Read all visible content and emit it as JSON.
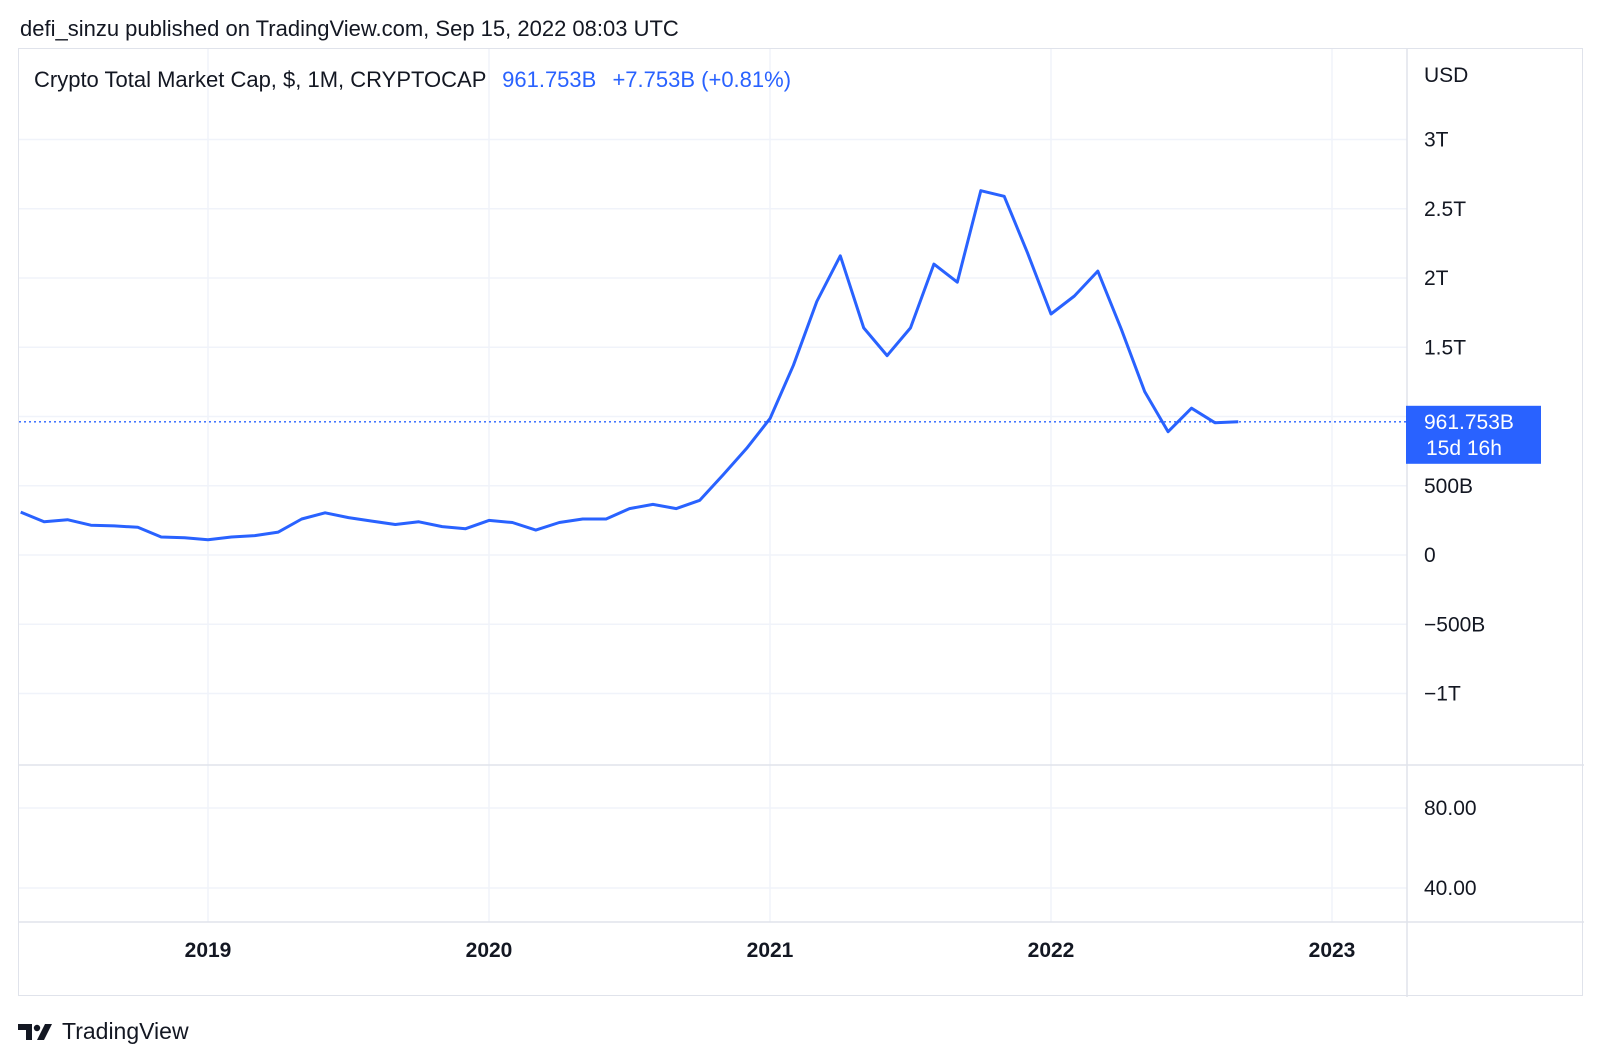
{
  "header": {
    "published": "defi_sinzu published on TradingView.com, Sep 15, 2022 08:03 UTC"
  },
  "legend": {
    "symbol": "Crypto Total Market Cap, $, 1M, CRYPTOCAP",
    "value": "961.753B",
    "change": "+7.753B (+0.81%)"
  },
  "price_tag": {
    "value": "961.753B",
    "countdown": "15d 16h"
  },
  "footer": {
    "brand": "TradingView"
  },
  "colors": {
    "line": "#2962ff",
    "grid": "#f0f3fa",
    "text": "#131722"
  },
  "chart_data": {
    "type": "line",
    "title": "Crypto Total Market Cap, $, 1M, CRYPTOCAP",
    "ylabel": "USD",
    "ylim": [
      -1000000000000,
      3000000000000
    ],
    "y_ticks": [
      {
        "value": 3000000000000,
        "label": "3T"
      },
      {
        "value": 2500000000000,
        "label": "2.5T"
      },
      {
        "value": 2000000000000,
        "label": "2T"
      },
      {
        "value": 1500000000000,
        "label": "1.5T"
      },
      {
        "value": 500000000000,
        "label": "500B"
      },
      {
        "value": 0,
        "label": "0"
      },
      {
        "value": -500000000000,
        "label": "−500B"
      },
      {
        "value": -1000000000000,
        "label": "−1T"
      }
    ],
    "lower_pane_ticks": [
      {
        "value": 80,
        "label": "80.00"
      },
      {
        "value": 40,
        "label": "40.00"
      }
    ],
    "x_ticks": [
      {
        "date": "2019-01",
        "label": "2019"
      },
      {
        "date": "2020-01",
        "label": "2020"
      },
      {
        "date": "2021-01",
        "label": "2021"
      },
      {
        "date": "2022-01",
        "label": "2022"
      },
      {
        "date": "2023-01",
        "label": "2023"
      }
    ],
    "grid": true,
    "series": [
      {
        "x": [
          "2018-05",
          "2018-06",
          "2018-07",
          "2018-08",
          "2018-09",
          "2018-10",
          "2018-11",
          "2018-12",
          "2019-01",
          "2019-02",
          "2019-03",
          "2019-04",
          "2019-05",
          "2019-06",
          "2019-07",
          "2019-08",
          "2019-09",
          "2019-10",
          "2019-11",
          "2019-12",
          "2020-01",
          "2020-02",
          "2020-03",
          "2020-04",
          "2020-05",
          "2020-06",
          "2020-07",
          "2020-08",
          "2020-09",
          "2020-10",
          "2020-11",
          "2020-12",
          "2021-01",
          "2021-02",
          "2021-03",
          "2021-04",
          "2021-05",
          "2021-06",
          "2021-07",
          "2021-08",
          "2021-09",
          "2021-10",
          "2021-11",
          "2021-12",
          "2022-01",
          "2022-02",
          "2022-03",
          "2022-04",
          "2022-05",
          "2022-06",
          "2022-07",
          "2022-08",
          "2022-09"
        ],
        "y": [
          310000000000,
          240000000000,
          255000000000,
          215000000000,
          210000000000,
          200000000000,
          130000000000,
          125000000000,
          110000000000,
          130000000000,
          140000000000,
          165000000000,
          260000000000,
          305000000000,
          270000000000,
          245000000000,
          220000000000,
          240000000000,
          205000000000,
          190000000000,
          250000000000,
          235000000000,
          180000000000,
          235000000000,
          260000000000,
          260000000000,
          335000000000,
          365000000000,
          335000000000,
          395000000000,
          580000000000,
          770000000000,
          985000000000,
          1370000000000,
          1830000000000,
          2160000000000,
          1640000000000,
          1440000000000,
          1640000000000,
          2100000000000,
          1970000000000,
          2630000000000,
          2590000000000,
          2180000000000,
          1740000000000,
          1870000000000,
          2050000000000,
          1630000000000,
          1180000000000,
          890000000000,
          1060000000000,
          955000000000,
          961753000000
        ]
      }
    ]
  }
}
